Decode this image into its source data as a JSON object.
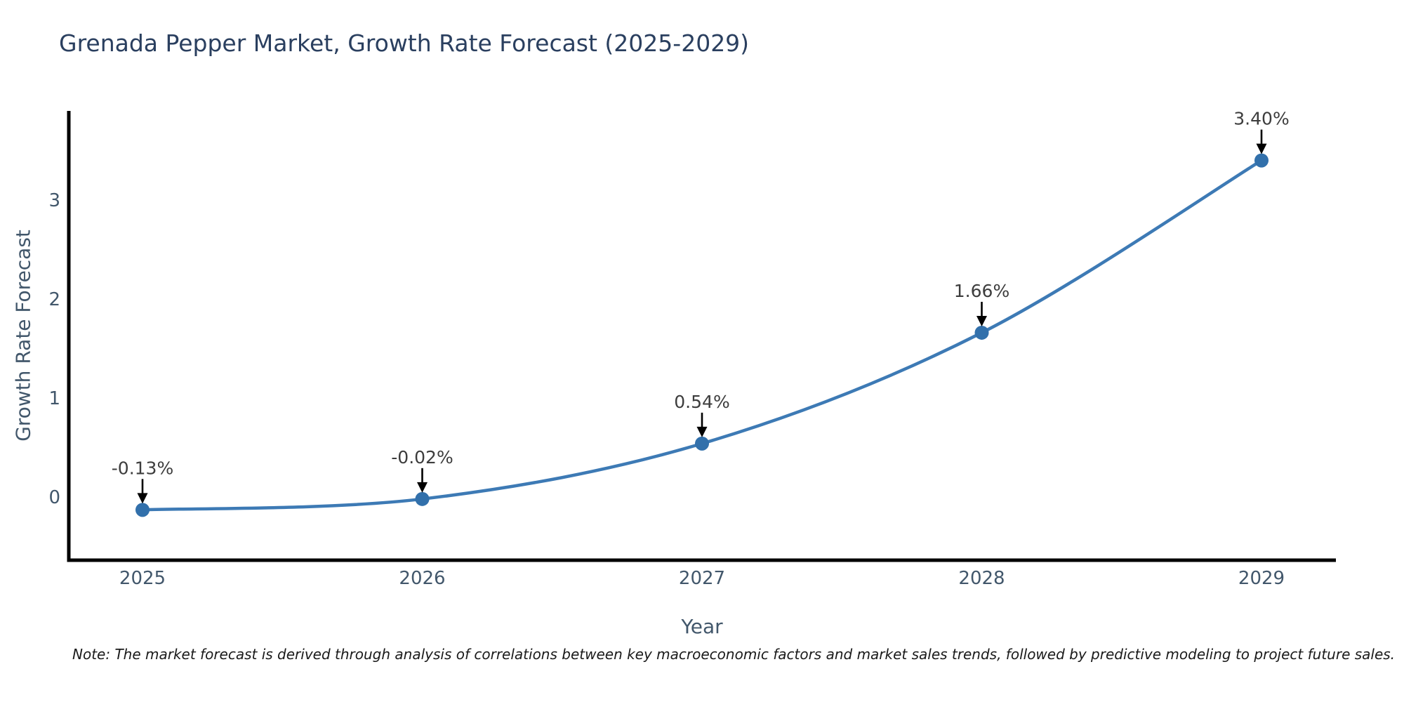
{
  "title": "Grenada Pepper Market, Growth Rate Forecast (2025-2029)",
  "note": "Note: The market forecast is derived through analysis of correlations between key macroeconomic factors and market sales trends, followed by predictive modeling to project future sales.",
  "chart_data": {
    "type": "line",
    "title": "Grenada Pepper Market, Growth Rate Forecast (2025-2029)",
    "xlabel": "Year",
    "ylabel": "Growth Rate Forecast",
    "x": [
      2025,
      2026,
      2027,
      2028,
      2029
    ],
    "values": [
      -0.13,
      -0.02,
      0.54,
      1.66,
      3.4
    ],
    "point_labels": [
      "-0.13%",
      "-0.02%",
      "0.54%",
      "1.66%",
      "3.40%"
    ],
    "y_ticks": [
      0,
      1,
      2,
      3
    ],
    "x_tick_labels": [
      "2025",
      "2026",
      "2027",
      "2028",
      "2029"
    ],
    "ylim": [
      -0.64,
      3.9
    ],
    "xlim": [
      2024.74,
      2029.27
    ],
    "grid": false,
    "legend_position": "none",
    "curve_style": "smooth-spline",
    "marker_style": "circle",
    "annotation_style": "value-label-with-down-arrow"
  },
  "colors": {
    "background": "#ffffff",
    "line": "#3d7ab5",
    "marker": "#3270ab",
    "axis_line": "#000000",
    "axis_text": "#42576b",
    "title_text": "#2a3f5f",
    "data_label_text": "#3d3d3d",
    "arrow": "#000000"
  }
}
